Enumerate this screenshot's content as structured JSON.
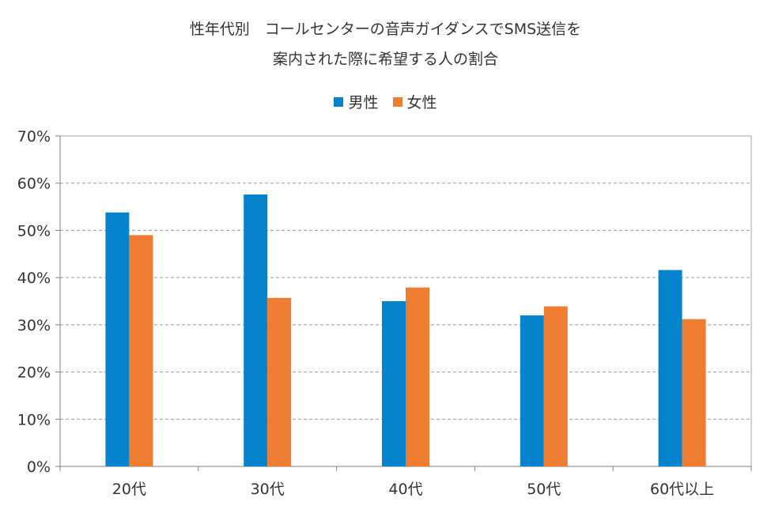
{
  "chart_data": {
    "type": "bar",
    "title_line1": "性年代別　コールセンターの音声ガイダンスでSMS送信を",
    "title_line2": "案内された際に希望する人の割合",
    "xlabel": "",
    "ylabel": "",
    "categories": [
      "20代",
      "30代",
      "40代",
      "50代",
      "60代以上"
    ],
    "series": [
      {
        "name": "男性",
        "color": "#0583cc",
        "values": [
          53.8,
          57.6,
          35.0,
          32.0,
          41.6
        ]
      },
      {
        "name": "女性",
        "color": "#ee7d31",
        "values": [
          49.0,
          35.7,
          37.9,
          33.9,
          31.2
        ]
      }
    ],
    "ylim": [
      0,
      70
    ],
    "yticks": [
      0,
      10,
      20,
      30,
      40,
      50,
      60,
      70
    ],
    "ytick_labels": [
      "0%",
      "10%",
      "20%",
      "30%",
      "40%",
      "50%",
      "60%",
      "70%"
    ],
    "legend_position": "top",
    "grid": true
  }
}
